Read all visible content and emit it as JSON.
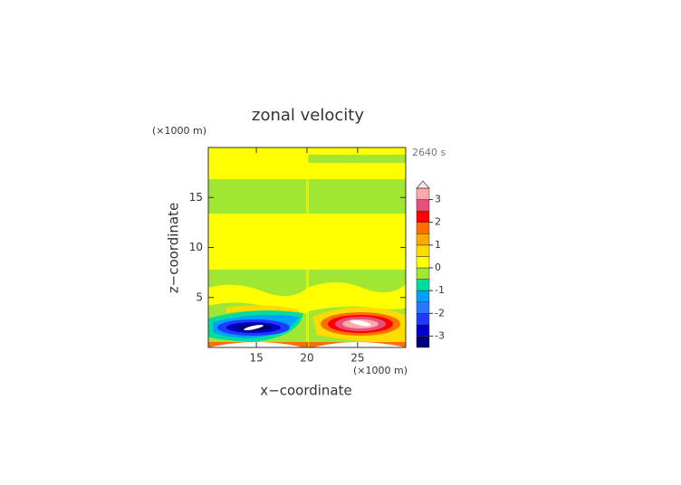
{
  "chart_data": {
    "type": "contour",
    "title": "zonal velocity",
    "x_label": "x−coordinate",
    "y_label": "z−coordinate",
    "x_unit": "(×1000 m)",
    "y_unit": "(×1000 m)",
    "time_label": "2640 s",
    "xlim": [
      10.25,
      29.75
    ],
    "xticks": [
      15,
      20,
      25
    ],
    "ylim": [
      0,
      20
    ],
    "yticks": [
      5,
      10,
      15
    ],
    "colorbar": {
      "levels": [
        -3.5,
        -3,
        -2.5,
        -2,
        -1.5,
        -1,
        -0.5,
        0,
        0.5,
        1,
        1.5,
        2,
        2.5,
        3,
        3.5
      ],
      "colors": [
        "#000078",
        "#0000c8",
        "#1e3cff",
        "#2878ff",
        "#00a0ff",
        "#00dca0",
        "#a0e632",
        "#ffff00",
        "#ffdc00",
        "#ffaa00",
        "#ff6e00",
        "#ff0000",
        "#e6507a",
        "#ffaaaa"
      ],
      "extend_color": "#ffe6e6",
      "ticks": [
        -3,
        -2,
        -1,
        0,
        1,
        2,
        3
      ]
    }
  }
}
